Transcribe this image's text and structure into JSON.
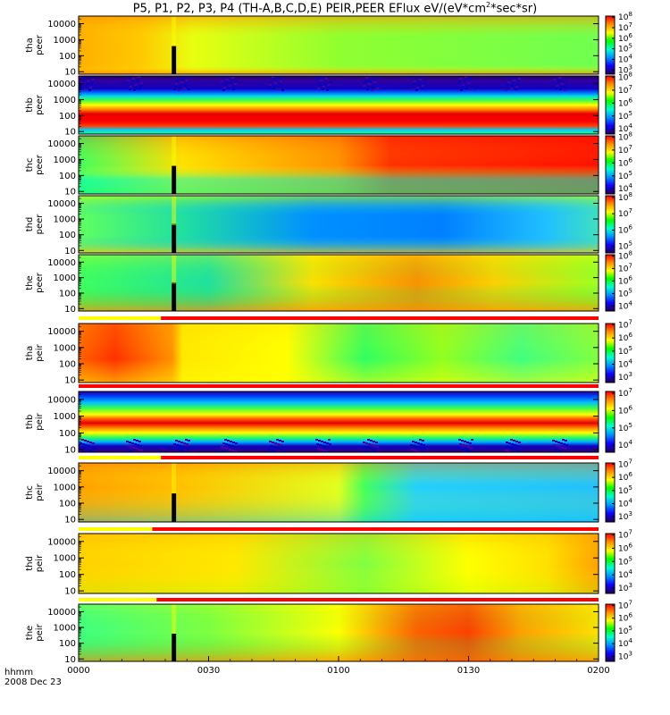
{
  "title": {
    "prefix": "P5, P1, P2, P3, P4 (TH-A,B,C,D,E) PEIR,PEER EFlux eV/(eV*cm",
    "sup": "2",
    "suffix": "*sec*sr)"
  },
  "time_axis": {
    "label_line1": "hhmm",
    "label_line2": "2008 Dec 23",
    "ticks": [
      "0000",
      "0030",
      "0100",
      "0130",
      "0200"
    ]
  },
  "colors": {
    "flag_yellow": "#ffff00",
    "flag_red": "#ff0000",
    "gap_black": "#000000"
  },
  "chart_data": {
    "type": "heatmap",
    "x_range_minutes": [
      0,
      120
    ],
    "x_tick_minutes": [
      0,
      30,
      60,
      90,
      120
    ],
    "y_scale": "log",
    "y_range_eV": [
      7,
      30000
    ],
    "y_tick_values": [
      10,
      100,
      1000,
      10000
    ],
    "y_tick_labels": [
      "10",
      "100",
      "1000",
      "10000"
    ],
    "panels": [
      {
        "probe": "tha",
        "species": "peer",
        "ylabel": [
          "tha",
          "peer"
        ],
        "cb_exps": [
          3,
          4,
          5,
          6,
          7,
          8
        ],
        "style": "a_peer",
        "mode_bar": false
      },
      {
        "probe": "thb",
        "species": "peer",
        "ylabel": [
          "thb",
          "peer"
        ],
        "cb_exps": [
          4,
          5,
          6,
          7,
          8
        ],
        "style": "b_peer",
        "mode_bar": false
      },
      {
        "probe": "thc",
        "species": "peer",
        "ylabel": [
          "thc",
          "peer"
        ],
        "cb_exps": [
          4,
          5,
          6,
          7,
          8
        ],
        "style": "c_peer",
        "mode_bar": false
      },
      {
        "probe": "thd",
        "species": "peer",
        "ylabel": [
          "thd",
          "peer"
        ],
        "cb_exps": [
          5,
          6,
          7,
          8
        ],
        "style": "d_peer",
        "mode_bar": false
      },
      {
        "probe": "the",
        "species": "peer",
        "ylabel": [
          "the",
          "peer"
        ],
        "cb_exps": [
          4,
          5,
          6,
          7,
          8
        ],
        "style": "e_peer",
        "mode_bar": false
      },
      {
        "probe": "tha",
        "species": "peir",
        "ylabel": [
          "tha",
          "peir"
        ],
        "cb_exps": [
          3,
          4,
          5,
          6,
          7
        ],
        "style": "a_peir",
        "mode_bar": true,
        "bar_switch_minute": 19
      },
      {
        "probe": "thb",
        "species": "peir",
        "ylabel": [
          "thb",
          "peir"
        ],
        "cb_exps": [
          4,
          5,
          6,
          7
        ],
        "style": "b_peir",
        "mode_bar": true,
        "bar_switch_minute": 0
      },
      {
        "probe": "thc",
        "species": "peir",
        "ylabel": [
          "thc",
          "peir"
        ],
        "cb_exps": [
          3,
          4,
          5,
          6,
          7
        ],
        "style": "c_peir",
        "mode_bar": true,
        "bar_switch_minute": 19
      },
      {
        "probe": "thd",
        "species": "peir",
        "ylabel": [
          "thd",
          "peir"
        ],
        "cb_exps": [
          3,
          4,
          5,
          6,
          7
        ],
        "style": "d_peir",
        "mode_bar": true,
        "bar_switch_minute": 17
      },
      {
        "probe": "the",
        "species": "peir",
        "ylabel": [
          "the",
          "peir"
        ],
        "cb_exps": [
          3,
          4,
          5,
          6,
          7
        ],
        "style": "e_peir",
        "mode_bar": true,
        "bar_switch_minute": 18
      }
    ],
    "data_gap_minutes": [
      19,
      21
    ]
  }
}
